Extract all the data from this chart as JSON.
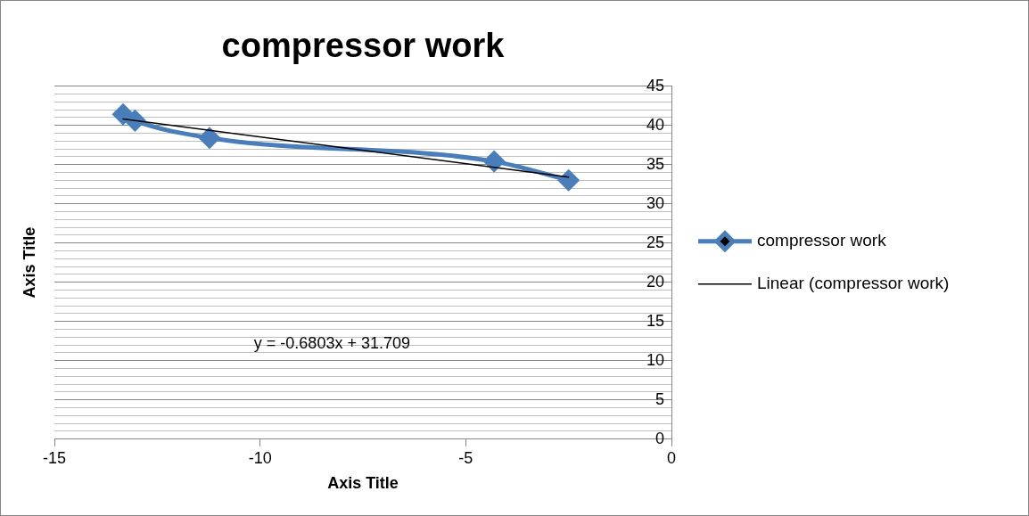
{
  "chart_data": {
    "type": "line",
    "title": "compressor work",
    "xlabel": "Axis Title",
    "ylabel": "Axis Title",
    "xlim": [
      -15,
      0
    ],
    "xticks": [
      -15,
      -10,
      -5,
      0
    ],
    "ylim": [
      0,
      45
    ],
    "yticks": [
      0,
      {
        "value": 1,
        "label": null
      },
      {
        "value": 2,
        "label": null
      },
      {
        "value": 3,
        "label": null
      },
      {
        "value": 4,
        "label": null
      },
      5,
      {
        "value": 6,
        "label": null
      },
      {
        "value": 7,
        "label": null
      },
      {
        "value": 8,
        "label": null
      },
      {
        "value": 9,
        "label": null
      },
      10,
      {
        "value": 11,
        "label": null
      },
      {
        "value": 12,
        "label": null
      },
      {
        "value": 13,
        "label": null
      },
      {
        "value": 14,
        "label": null
      },
      15,
      {
        "value": 16,
        "label": null
      },
      {
        "value": 17,
        "label": null
      },
      {
        "value": 18,
        "label": null
      },
      {
        "value": 19,
        "label": null
      },
      20,
      {
        "value": 21,
        "label": null
      },
      {
        "value": 22,
        "label": null
      },
      {
        "value": 23,
        "label": null
      },
      {
        "value": 24,
        "label": null
      },
      25,
      {
        "value": 26,
        "label": null
      },
      {
        "value": 27,
        "label": null
      },
      {
        "value": 28,
        "label": null
      },
      {
        "value": 29,
        "label": null
      },
      30,
      {
        "value": 31,
        "label": null
      },
      {
        "value": 32,
        "label": null
      },
      {
        "value": 33,
        "label": null
      },
      {
        "value": 34,
        "label": null
      },
      35,
      {
        "value": 36,
        "label": null
      },
      {
        "value": 37,
        "label": null
      },
      {
        "value": 38,
        "label": null
      },
      {
        "value": 39,
        "label": null
      },
      40,
      {
        "value": 41,
        "label": null
      },
      {
        "value": 42,
        "label": null
      },
      {
        "value": 43,
        "label": null
      },
      {
        "value": 44,
        "label": null
      },
      45
    ],
    "grid": "y",
    "legend": "right",
    "marker": "diamond",
    "series": [
      {
        "name": "compressor work",
        "color": "#4a7ebb",
        "x": [
          -13.33,
          -13.04,
          -11.23,
          -4.31,
          -2.5
        ],
        "values": [
          41.4,
          40.6,
          38.4,
          35.4,
          33.0
        ]
      },
      {
        "name": "Linear (compressor work)",
        "type": "line",
        "color": "#000000",
        "marker": "none",
        "x": [
          -13.33,
          -2.5
        ],
        "values": [
          40.8,
          33.4
        ]
      }
    ],
    "annotations": [
      "y = -0.6803x + 31.709"
    ]
  }
}
